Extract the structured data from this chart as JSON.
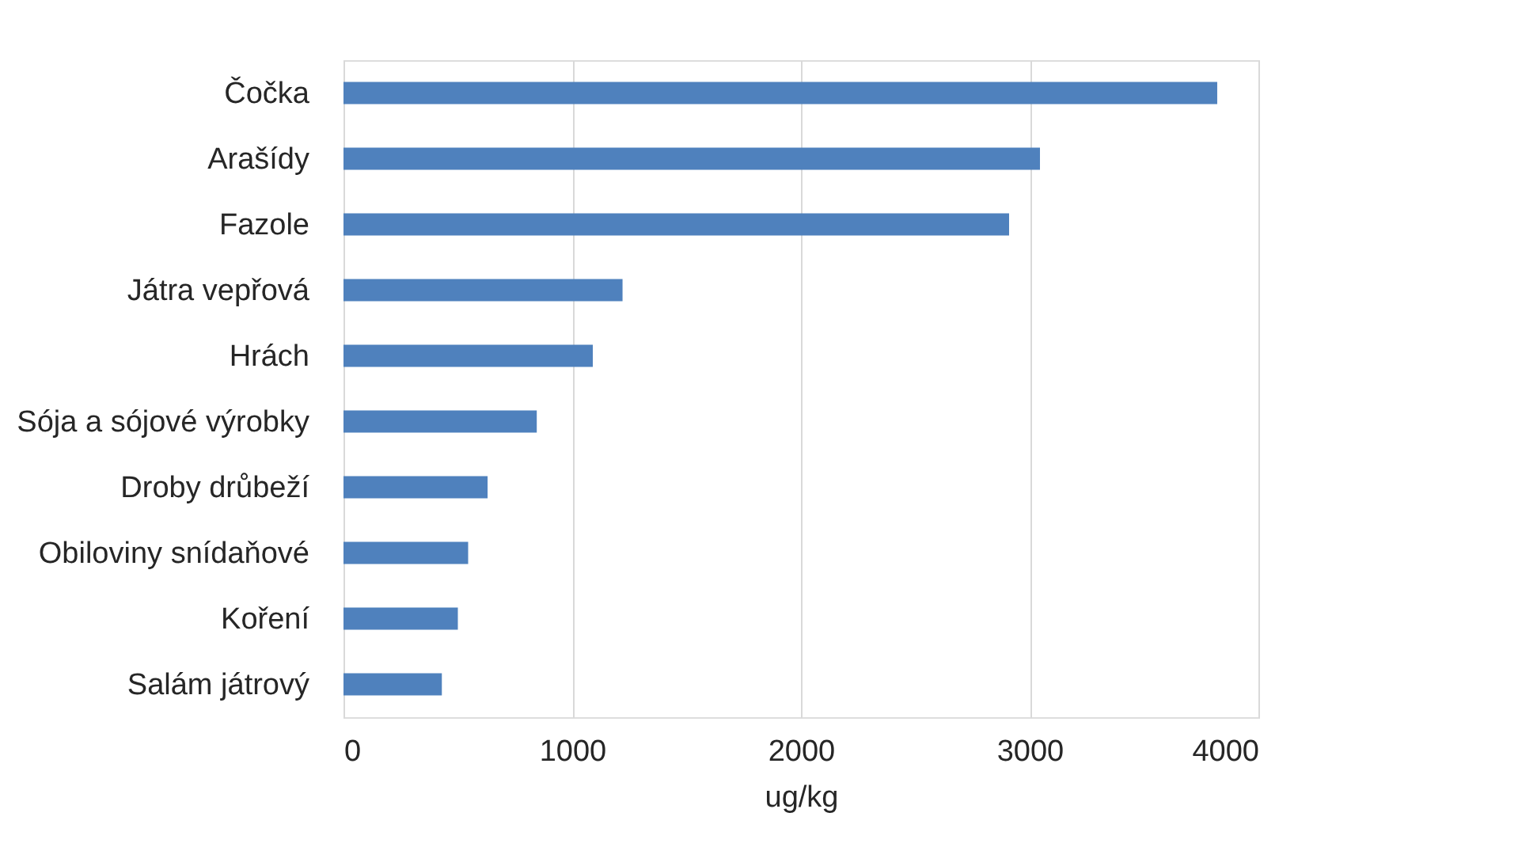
{
  "chart_data": {
    "type": "bar",
    "orientation": "horizontal",
    "xlabel": "ug/kg",
    "categories": [
      "Čočka",
      "Arašídy",
      "Fazole",
      "Játra vepřová",
      "Hrách",
      "Sója a sójové výrobky",
      "Droby drůbeží",
      "Obiloviny snídaňové",
      "Koření",
      "Salám játrový"
    ],
    "values": [
      3820,
      3045,
      2910,
      1220,
      1090,
      845,
      630,
      545,
      500,
      430
    ],
    "color": "#4f81bd",
    "xlim": [
      0,
      4000
    ],
    "xticks": [
      0,
      1000,
      2000,
      3000,
      4000
    ],
    "grid": "x"
  }
}
